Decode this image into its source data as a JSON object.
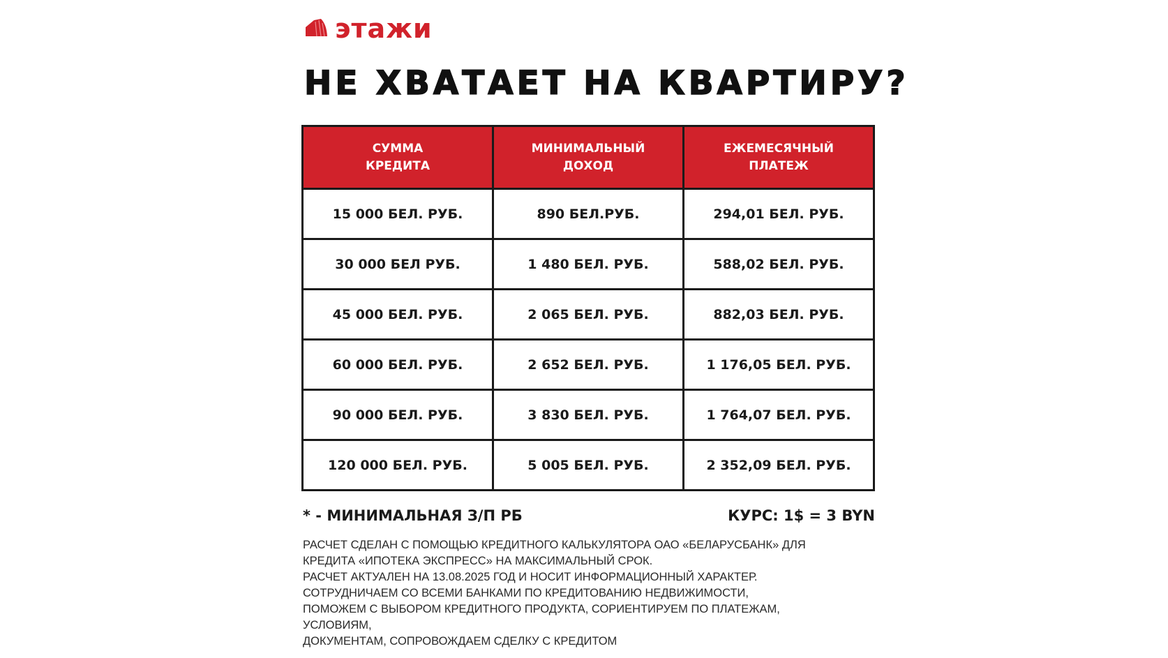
{
  "brand": {
    "name": "этажи",
    "color": "#d1222b",
    "icon": "building-icon"
  },
  "title": "НЕ ХВАТАЕТ НА КВАРТИРУ?",
  "table": {
    "headers": [
      "СУММА\nКРЕДИТА",
      "МИНИМАЛЬНЫЙ\nДОХОД",
      "ЕЖЕМЕСЯЧНЫЙ\nПЛАТЕЖ"
    ],
    "rows": [
      [
        "15 000 БЕЛ. РУБ.",
        "890 БЕЛ.РУБ.",
        "294,01 БЕЛ. РУБ."
      ],
      [
        "30 000 БЕЛ РУБ.",
        "1 480 БЕЛ. РУБ.",
        "588,02 БЕЛ. РУБ."
      ],
      [
        "45 000 БЕЛ. РУБ.",
        "2 065 БЕЛ. РУБ.",
        "882,03 БЕЛ. РУБ."
      ],
      [
        "60 000 БЕЛ. РУБ.",
        "2 652 БЕЛ. РУБ.",
        "1 176,05 БЕЛ. РУБ."
      ],
      [
        "90 000 БЕЛ. РУБ.",
        "3 830 БЕЛ. РУБ.",
        "1 764,07 БЕЛ. РУБ."
      ],
      [
        "120 000 БЕЛ. РУБ.",
        "5 005 БЕЛ. РУБ.",
        "2 352,09 БЕЛ. РУБ."
      ]
    ]
  },
  "note": "* - МИНИМАЛЬНАЯ З/П РБ",
  "rate": "КУРС: 1$ = 3 BYN",
  "footer_lines": [
    "РАСЧЕТ СДЕЛАН С ПОМОЩЬЮ КРЕДИТНОГО КАЛЬКУЛЯТОРА ОАО «БЕЛАРУСБАНК» ДЛЯ",
    "КРЕДИТА «ИПОТЕКА ЭКСПРЕСС» НА МАКСИМАЛЬНЫЙ СРОК.",
    "РАСЧЕТ АКТУАЛЕН НА 13.08.2025 ГОД И НОСИТ ИНФОРМАЦИОННЫЙ ХАРАКТЕР.",
    "СОТРУДНИЧАЕМ СО ВСЕМИ БАНКАМИ ПО КРЕДИТОВАНИЮ НЕДВИЖИМОСТИ,",
    "ПОМОЖЕМ С ВЫБОРОМ КРЕДИТНОГО ПРОДУКТА, СОРИЕНТИРУЕМ ПО ПЛАТЕЖАМ,",
    "УСЛОВИЯМ,",
    "ДОКУМЕНТАМ, СОПРОВОЖДАЕМ СДЕЛКУ С КРЕДИТОМ"
  ]
}
